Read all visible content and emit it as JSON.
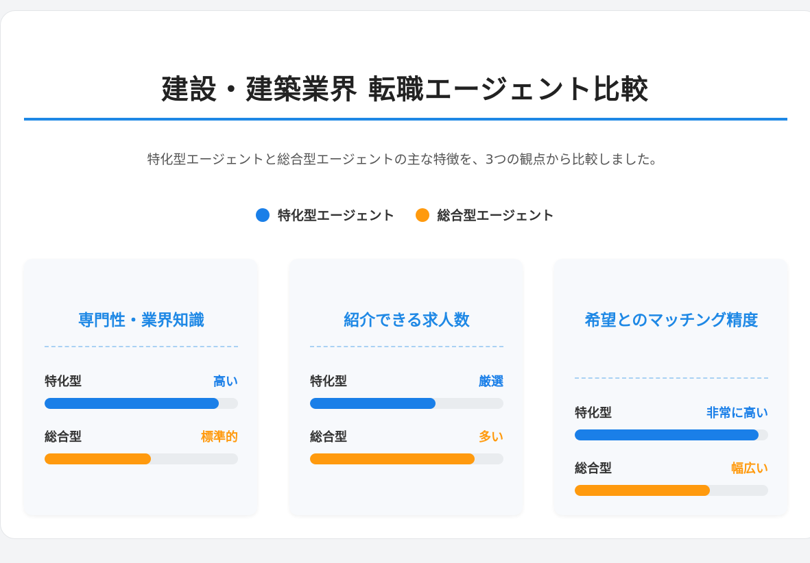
{
  "title": "建設・建築業界 転職エージェント比較",
  "subtitle": "特化型エージェントと総合型エージェントの主な特徴を、3つの観点から比較しました。",
  "legend": [
    {
      "label": "特化型エージェント",
      "color": "#1a7fe8"
    },
    {
      "label": "総合型エージェント",
      "color": "#ff9a0e"
    }
  ],
  "chart_data": {
    "type": "bar",
    "orientation": "horizontal",
    "scale": "relative (0–1, no axis)",
    "categories": [
      {
        "title": "専門性・業界知識",
        "rows": [
          {
            "label": "特化型",
            "value_label": "高い",
            "value": 0.9
          },
          {
            "label": "総合型",
            "value_label": "標準的",
            "value": 0.55
          }
        ]
      },
      {
        "title": "紹介できる求人数",
        "rows": [
          {
            "label": "特化型",
            "value_label": "厳選",
            "value": 0.65
          },
          {
            "label": "総合型",
            "value_label": "多い",
            "value": 0.85
          }
        ]
      },
      {
        "title": "希望とのマッチング精度",
        "rows": [
          {
            "label": "特化型",
            "value_label": "非常に高い",
            "value": 0.95
          },
          {
            "label": "総合型",
            "value_label": "幅広い",
            "value": 0.7
          }
        ]
      }
    ]
  }
}
